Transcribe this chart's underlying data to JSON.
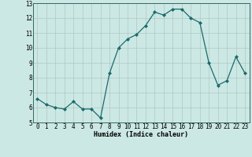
{
  "x": [
    0,
    1,
    2,
    3,
    4,
    5,
    6,
    7,
    8,
    9,
    10,
    11,
    12,
    13,
    14,
    15,
    16,
    17,
    18,
    19,
    20,
    21,
    22,
    23
  ],
  "y": [
    6.6,
    6.2,
    6.0,
    5.9,
    6.4,
    5.9,
    5.9,
    5.3,
    8.3,
    10.0,
    10.6,
    10.9,
    11.5,
    12.4,
    12.2,
    12.6,
    12.6,
    12.0,
    11.7,
    9.0,
    7.5,
    7.8,
    9.4,
    8.3
  ],
  "line_color": "#1a6b6b",
  "marker": "D",
  "marker_size": 2.0,
  "bg_color": "#cce8e4",
  "grid_color": "#b0c8c4",
  "xlabel": "Humidex (Indice chaleur)",
  "ylim": [
    5,
    13
  ],
  "xlim": [
    -0.5,
    23.5
  ],
  "yticks": [
    5,
    6,
    7,
    8,
    9,
    10,
    11,
    12,
    13
  ],
  "xticks": [
    0,
    1,
    2,
    3,
    4,
    5,
    6,
    7,
    8,
    9,
    10,
    11,
    12,
    13,
    14,
    15,
    16,
    17,
    18,
    19,
    20,
    21,
    22,
    23
  ],
  "xlabel_fontsize": 6.0,
  "tick_fontsize": 5.5,
  "linewidth": 0.9
}
